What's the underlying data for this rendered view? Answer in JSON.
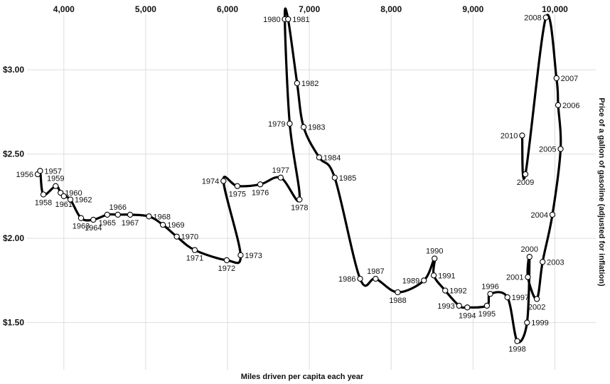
{
  "chart_data": {
    "type": "line",
    "subtype": "connected-scatter",
    "xlabel": "Miles driven per capita each year",
    "ylabel": "Price of a gallon of gasoline (adjusted for inflation)",
    "x_axis_position": "top",
    "y_axis_position": "left",
    "ylabel_position": "right",
    "grid": true,
    "xlim": [
      3550,
      10500
    ],
    "ylim": [
      1.22,
      3.38
    ],
    "x_ticks": [
      4000,
      5000,
      6000,
      7000,
      8000,
      9000,
      10000
    ],
    "x_tick_labels": [
      "4,000",
      "5,000",
      "6,000",
      "7,000",
      "8,000",
      "9,000",
      "10,000"
    ],
    "y_ticks": [
      1.5,
      2.0,
      2.5,
      3.0
    ],
    "y_tick_labels": [
      "$1.50",
      "$2.00",
      "$2.50",
      "$3.00"
    ],
    "line_color": "#000000",
    "marker_fill": "#ffffff",
    "points": [
      {
        "year": "1956",
        "x": 3680,
        "y": 2.38,
        "label_side": "left"
      },
      {
        "year": "1957",
        "x": 3710,
        "y": 2.4,
        "label_side": "right"
      },
      {
        "year": "1958",
        "x": 3750,
        "y": 2.26,
        "label_side": "below"
      },
      {
        "year": "1959",
        "x": 3900,
        "y": 2.31,
        "label_side": "above"
      },
      {
        "year": "1960",
        "x": 3960,
        "y": 2.27,
        "label_side": "right"
      },
      {
        "year": "1961",
        "x": 4000,
        "y": 2.25,
        "label_side": "below"
      },
      {
        "year": "1962",
        "x": 4080,
        "y": 2.23,
        "label_side": "right"
      },
      {
        "year": "1963",
        "x": 4210,
        "y": 2.12,
        "label_side": "below"
      },
      {
        "year": "1964",
        "x": 4360,
        "y": 2.11,
        "label_side": "below"
      },
      {
        "year": "1965",
        "x": 4530,
        "y": 2.14,
        "label_side": "below"
      },
      {
        "year": "1966",
        "x": 4660,
        "y": 2.14,
        "label_side": "above"
      },
      {
        "year": "1967",
        "x": 4810,
        "y": 2.14,
        "label_side": "below"
      },
      {
        "year": "1968",
        "x": 5040,
        "y": 2.13,
        "label_side": "right"
      },
      {
        "year": "1969",
        "x": 5210,
        "y": 2.08,
        "label_side": "right"
      },
      {
        "year": "1970",
        "x": 5380,
        "y": 2.01,
        "label_side": "right"
      },
      {
        "year": "1971",
        "x": 5600,
        "y": 1.93,
        "label_side": "below"
      },
      {
        "year": "1972",
        "x": 5990,
        "y": 1.87,
        "label_side": "below"
      },
      {
        "year": "1973",
        "x": 6160,
        "y": 1.9,
        "label_side": "right"
      },
      {
        "year": "1974",
        "x": 5950,
        "y": 2.34,
        "label_side": "left"
      },
      {
        "year": "1975",
        "x": 6120,
        "y": 2.31,
        "label_side": "below"
      },
      {
        "year": "1976",
        "x": 6400,
        "y": 2.32,
        "label_side": "below"
      },
      {
        "year": "1977",
        "x": 6650,
        "y": 2.36,
        "label_side": "above"
      },
      {
        "year": "1978",
        "x": 6880,
        "y": 2.23,
        "label_side": "below"
      },
      {
        "year": "1979",
        "x": 6760,
        "y": 2.68,
        "label_side": "left"
      },
      {
        "year": "1980",
        "x": 6700,
        "y": 3.3,
        "label_side": "left"
      },
      {
        "year": "1981",
        "x": 6740,
        "y": 3.3,
        "label_side": "right"
      },
      {
        "year": "1982",
        "x": 6850,
        "y": 2.92,
        "label_side": "right"
      },
      {
        "year": "1983",
        "x": 6930,
        "y": 2.66,
        "label_side": "right"
      },
      {
        "year": "1984",
        "x": 7120,
        "y": 2.48,
        "label_side": "right"
      },
      {
        "year": "1985",
        "x": 7310,
        "y": 2.36,
        "label_side": "right"
      },
      {
        "year": "1986",
        "x": 7620,
        "y": 1.76,
        "label_side": "left"
      },
      {
        "year": "1987",
        "x": 7810,
        "y": 1.76,
        "label_side": "above"
      },
      {
        "year": "1988",
        "x": 8080,
        "y": 1.68,
        "label_side": "below"
      },
      {
        "year": "1989",
        "x": 8400,
        "y": 1.75,
        "label_side": "left"
      },
      {
        "year": "1990",
        "x": 8530,
        "y": 1.88,
        "label_side": "above"
      },
      {
        "year": "1991",
        "x": 8520,
        "y": 1.78,
        "label_side": "right"
      },
      {
        "year": "1992",
        "x": 8660,
        "y": 1.69,
        "label_side": "right"
      },
      {
        "year": "1993",
        "x": 8830,
        "y": 1.6,
        "label_side": "left"
      },
      {
        "year": "1994",
        "x": 8930,
        "y": 1.59,
        "label_side": "below"
      },
      {
        "year": "1995",
        "x": 9170,
        "y": 1.6,
        "label_side": "below"
      },
      {
        "year": "1996",
        "x": 9210,
        "y": 1.67,
        "label_side": "above"
      },
      {
        "year": "1997",
        "x": 9420,
        "y": 1.65,
        "label_side": "right"
      },
      {
        "year": "1998",
        "x": 9540,
        "y": 1.39,
        "label_side": "below"
      },
      {
        "year": "1999",
        "x": 9660,
        "y": 1.5,
        "label_side": "right"
      },
      {
        "year": "2000",
        "x": 9690,
        "y": 1.89,
        "label_side": "above"
      },
      {
        "year": "2001",
        "x": 9670,
        "y": 1.77,
        "label_side": "left"
      },
      {
        "year": "2002",
        "x": 9780,
        "y": 1.64,
        "label_side": "below"
      },
      {
        "year": "2003",
        "x": 9850,
        "y": 1.86,
        "label_side": "right"
      },
      {
        "year": "2004",
        "x": 9970,
        "y": 2.14,
        "label_side": "left"
      },
      {
        "year": "2005",
        "x": 10070,
        "y": 2.53,
        "label_side": "left"
      },
      {
        "year": "2006",
        "x": 10040,
        "y": 2.79,
        "label_side": "right"
      },
      {
        "year": "2007",
        "x": 10020,
        "y": 2.95,
        "label_side": "right"
      },
      {
        "year": "2008",
        "x": 9890,
        "y": 3.31,
        "label_side": "left"
      },
      {
        "year": "2009",
        "x": 9640,
        "y": 2.38,
        "label_side": "below"
      },
      {
        "year": "2010",
        "x": 9600,
        "y": 2.61,
        "label_side": "left"
      }
    ]
  }
}
